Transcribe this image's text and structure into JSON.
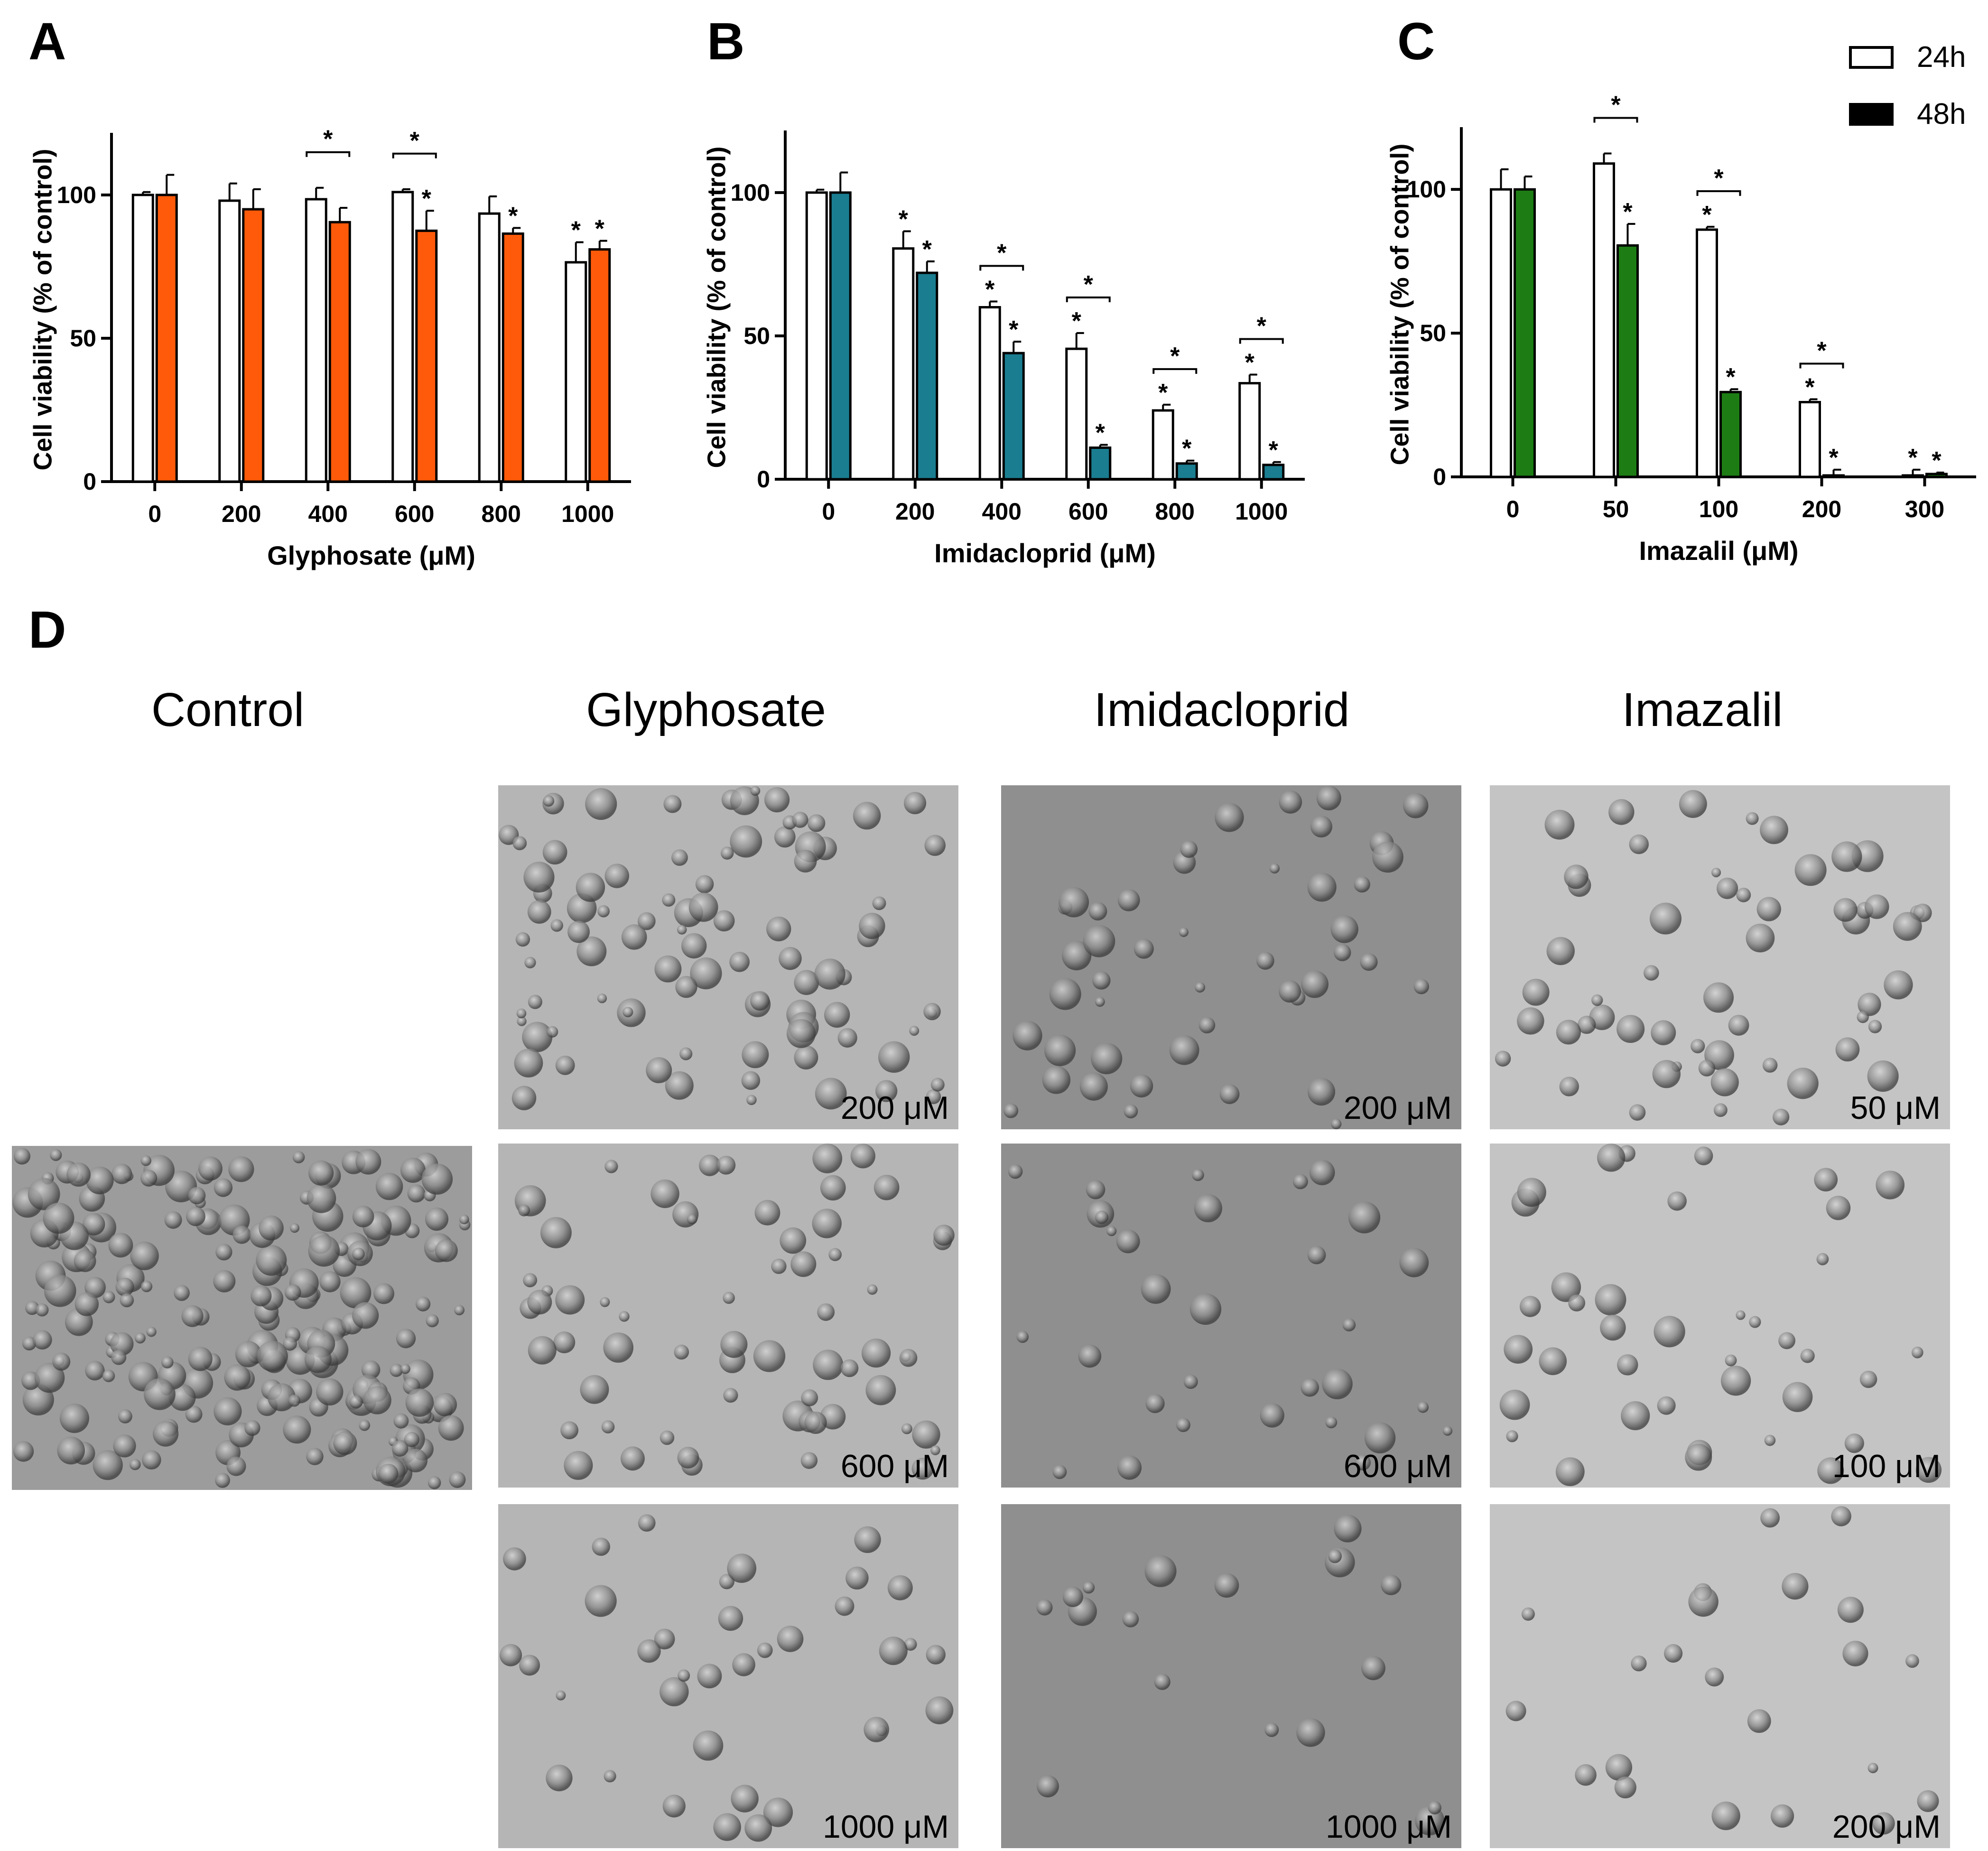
{
  "legend": {
    "items": [
      {
        "label": "24h",
        "fill": "#ffffff"
      },
      {
        "label": "48h",
        "fill": "#000000"
      }
    ]
  },
  "chart_data": [
    {
      "panel": "A",
      "type": "bar",
      "xlabel": "Glyphosate (μM)",
      "ylabel": "Cell viability (% of control)",
      "ylim": [
        0,
        120
      ],
      "yticks": [
        0,
        50,
        100
      ],
      "categories": [
        "0",
        "200",
        "400",
        "600",
        "800",
        "1000"
      ],
      "color_48h": "#ff5a0a",
      "series": [
        {
          "name": "24h",
          "values": [
            100,
            98,
            98.5,
            101,
            93.5,
            76.5
          ],
          "errors": [
            1,
            6,
            4,
            1,
            6,
            7
          ],
          "sig": [
            false,
            false,
            false,
            false,
            false,
            true
          ]
        },
        {
          "name": "48h",
          "values": [
            100,
            95,
            90.5,
            87.5,
            86.5,
            81
          ],
          "errors": [
            7,
            7,
            5,
            7,
            2,
            3
          ],
          "sig": [
            false,
            false,
            false,
            true,
            true,
            true
          ]
        }
      ],
      "brackets": [
        2,
        3
      ],
      "star": "*"
    },
    {
      "panel": "B",
      "type": "bar",
      "xlabel": "Imidacloprid (μM)",
      "ylabel": "Cell viability (% of control)",
      "ylim": [
        0,
        120
      ],
      "yticks": [
        0,
        50,
        100
      ],
      "categories": [
        "0",
        "200",
        "400",
        "600",
        "800",
        "1000"
      ],
      "color_48h": "#1a7d90",
      "series": [
        {
          "name": "24h",
          "values": [
            100,
            80.5,
            60,
            45.5,
            24,
            33.5
          ],
          "errors": [
            1,
            6,
            2,
            5.5,
            2,
            3
          ],
          "sig": [
            false,
            true,
            true,
            true,
            true,
            true
          ]
        },
        {
          "name": "48h",
          "values": [
            100,
            72,
            44,
            11,
            5.5,
            5
          ],
          "errors": [
            7,
            4,
            4,
            1,
            1,
            1
          ],
          "sig": [
            false,
            true,
            true,
            true,
            true,
            true
          ]
        }
      ],
      "brackets": [
        2,
        3,
        4,
        5
      ],
      "star": "*"
    },
    {
      "panel": "C",
      "type": "bar",
      "xlabel": "Imazalil (μM)",
      "ylabel": "Cell viability (% of control)",
      "ylim": [
        0,
        120
      ],
      "yticks": [
        0,
        50,
        100
      ],
      "categories": [
        "0",
        "50",
        "100",
        "200",
        "300"
      ],
      "color_48h": "#1d7d14",
      "series": [
        {
          "name": "24h",
          "values": [
            100,
            109,
            86,
            26,
            0.5
          ],
          "errors": [
            7,
            3.5,
            1,
            1,
            2
          ],
          "sig": [
            false,
            false,
            true,
            true,
            true
          ]
        },
        {
          "name": "48h",
          "values": [
            100,
            80.5,
            29.5,
            0.5,
            1
          ],
          "errors": [
            4.5,
            7.5,
            1,
            2,
            0.5
          ],
          "sig": [
            false,
            true,
            true,
            true,
            true
          ]
        }
      ],
      "brackets": [
        1,
        2,
        3
      ],
      "star": "*"
    }
  ],
  "micrographs": {
    "letter": "D",
    "columns": [
      "Control",
      "Glyphosate",
      "Imidacloprid",
      "Imazalil"
    ],
    "cells": [
      {
        "group": "Control",
        "label": ""
      },
      {
        "group": "Glyphosate",
        "label": "200 μM"
      },
      {
        "group": "Glyphosate",
        "label": "600 μM"
      },
      {
        "group": "Glyphosate",
        "label": "1000 μM"
      },
      {
        "group": "Imidacloprid",
        "label": "200 μM"
      },
      {
        "group": "Imidacloprid",
        "label": "600 μM"
      },
      {
        "group": "Imidacloprid",
        "label": "1000 μM"
      },
      {
        "group": "Imazalil",
        "label": "50 μM"
      },
      {
        "group": "Imazalil",
        "label": "100 μM"
      },
      {
        "group": "Imazalil",
        "label": "200 μM"
      }
    ]
  }
}
